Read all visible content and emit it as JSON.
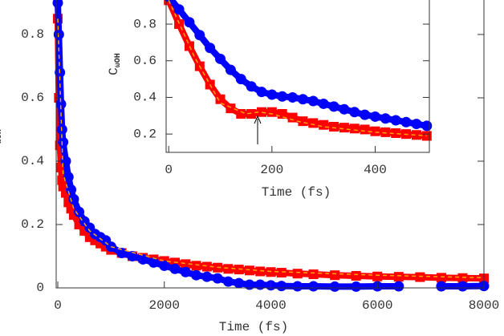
{
  "chart_data": [
    {
      "type": "scatter",
      "xlabel": "Time (fs)",
      "ylabel": "C",
      "ylabel_sub": "ωOH",
      "xlim": [
        0,
        8000
      ],
      "ylim": [
        0,
        1
      ],
      "xticks": [
        0,
        2000,
        4000,
        6000,
        8000
      ],
      "yticks": [
        0,
        0.2,
        0.4,
        0.6,
        0.8
      ],
      "series": [
        {
          "color": "#ff0000",
          "marker": "square",
          "x": [
            0,
            20,
            40,
            60,
            80,
            100,
            150,
            200,
            250,
            300,
            400,
            500,
            600,
            700,
            800,
            900,
            1000,
            1200,
            1400,
            1600,
            1800,
            2000,
            2200,
            2400,
            2600,
            2800,
            3000,
            3200,
            3400,
            3600,
            3800,
            4000,
            4200,
            4500,
            4800,
            5200,
            5600,
            6000,
            6400,
            6800,
            7200,
            7600,
            8000
          ],
          "values": [
            0.85,
            0.6,
            0.45,
            0.38,
            0.34,
            0.32,
            0.3,
            0.27,
            0.25,
            0.23,
            0.2,
            0.18,
            0.16,
            0.15,
            0.14,
            0.13,
            0.12,
            0.11,
            0.1,
            0.095,
            0.09,
            0.085,
            0.08,
            0.075,
            0.07,
            0.067,
            0.064,
            0.06,
            0.058,
            0.055,
            0.052,
            0.05,
            0.048,
            0.045,
            0.043,
            0.04,
            0.038,
            0.036,
            0.035,
            0.034,
            0.032,
            0.031,
            0.03
          ]
        },
        {
          "color": "#0000ff",
          "marker": "circle",
          "x": [
            0,
            20,
            40,
            60,
            80,
            100,
            150,
            200,
            250,
            300,
            400,
            500,
            600,
            700,
            800,
            900,
            1000,
            1200,
            1400,
            1600,
            1800,
            2000,
            2200,
            2400,
            2600,
            2800,
            3000,
            3200,
            3400,
            3600,
            3800,
            4000,
            4200,
            4500,
            4800,
            5200,
            5600,
            6000,
            6400,
            6800,
            7200,
            7600,
            8000
          ],
          "values": [
            0.9,
            0.8,
            0.68,
            0.58,
            0.5,
            0.46,
            0.4,
            0.35,
            0.31,
            0.28,
            0.24,
            0.21,
            0.19,
            0.17,
            0.16,
            0.15,
            0.13,
            0.11,
            0.1,
            0.09,
            0.08,
            0.07,
            0.06,
            0.05,
            0.04,
            0.035,
            0.03,
            0.02,
            0.015,
            0.01,
            0.01,
            0.008,
            0.006,
            0.005,
            0.005,
            0.004,
            0.004,
            0.005,
            0.005,
            null,
            0.005,
            0.005,
            0.006
          ]
        },
        {
          "color": "#ffa500",
          "marker": "none",
          "style": "dashed",
          "x": [
            0,
            100,
            300,
            600,
            1000,
            2000,
            3000,
            4000,
            6000,
            8000
          ],
          "values": [
            0.85,
            0.36,
            0.25,
            0.18,
            0.13,
            0.085,
            0.065,
            0.052,
            0.04,
            0.032
          ]
        }
      ]
    },
    {
      "type": "scatter",
      "xlabel": "Time (fs)",
      "ylabel": "C",
      "ylabel_sub": "ωOH",
      "xlim": [
        -5,
        505
      ],
      "ylim": [
        0.1,
        1.0
      ],
      "xticks": [
        0,
        200,
        400
      ],
      "yticks": [
        0.2,
        0.4,
        0.6,
        0.8
      ],
      "series": [
        {
          "color": "#ff0000",
          "marker": "square",
          "x": [
            0,
            20,
            40,
            60,
            80,
            100,
            120,
            140,
            160,
            180,
            200,
            220,
            240,
            260,
            280,
            300,
            320,
            340,
            360,
            380,
            400,
            420,
            440,
            460,
            480,
            500
          ],
          "values": [
            0.93,
            0.8,
            0.68,
            0.57,
            0.47,
            0.39,
            0.34,
            0.31,
            0.31,
            0.32,
            0.32,
            0.31,
            0.29,
            0.27,
            0.26,
            0.25,
            0.24,
            0.235,
            0.23,
            0.225,
            0.215,
            0.21,
            0.205,
            0.2,
            0.195,
            0.19
          ]
        },
        {
          "color": "#0000ff",
          "marker": "circle",
          "x": [
            0,
            20,
            40,
            60,
            80,
            100,
            120,
            140,
            160,
            180,
            200,
            220,
            240,
            260,
            280,
            300,
            320,
            340,
            360,
            380,
            400,
            420,
            440,
            460,
            480,
            500
          ],
          "values": [
            0.95,
            0.88,
            0.81,
            0.74,
            0.67,
            0.61,
            0.55,
            0.5,
            0.46,
            0.43,
            0.415,
            0.405,
            0.4,
            0.39,
            0.38,
            0.365,
            0.35,
            0.335,
            0.32,
            0.305,
            0.295,
            0.285,
            0.275,
            0.265,
            0.255,
            0.245
          ]
        },
        {
          "color": "#ffa500",
          "marker": "none",
          "style": "dashed",
          "x": [
            0,
            50,
            100,
            150,
            175,
            200,
            250,
            300,
            400,
            500
          ],
          "values": [
            0.93,
            0.62,
            0.37,
            0.31,
            0.32,
            0.31,
            0.27,
            0.24,
            0.21,
            0.19
          ]
        }
      ]
    }
  ]
}
